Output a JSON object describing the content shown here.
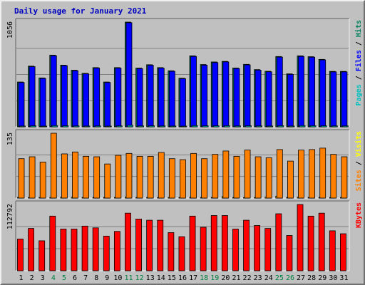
{
  "title": "Daily usage for January 2021",
  "colors": {
    "hits": "#00805c",
    "files": "#0000ff",
    "pages": "#00c0c0",
    "visits": "#ffff00",
    "sites": "#ff8000",
    "kbytes": "#ff0000",
    "weekend_day": "#008040",
    "weekday": "#000000"
  },
  "chart_data": [
    {
      "type": "bar",
      "categories": [
        "1",
        "2",
        "3",
        "4",
        "5",
        "6",
        "7",
        "8",
        "9",
        "10",
        "11",
        "12",
        "13",
        "14",
        "15",
        "16",
        "17",
        "18",
        "19",
        "20",
        "21",
        "22",
        "23",
        "24",
        "25",
        "26",
        "27",
        "28",
        "29",
        "30",
        "31"
      ],
      "y_max_label": "1056",
      "ylim": [
        0,
        1056
      ],
      "side_label": [
        "Pages",
        "Files",
        "Hits"
      ],
      "series": [
        {
          "name": "Hits",
          "values": [
            452,
            612,
            493,
            723,
            622,
            571,
            539,
            597,
            452,
            597,
            1056,
            592,
            626,
            597,
            565,
            490,
            716,
            628,
            654,
            660,
            593,
            630,
            577,
            560,
            709,
            534,
            716,
            707,
            680,
            559,
            559
          ]
        },
        {
          "name": "Files",
          "values": [
            447,
            607,
            488,
            717,
            617,
            566,
            534,
            592,
            447,
            592,
            1050,
            587,
            621,
            592,
            560,
            485,
            710,
            622,
            648,
            655,
            588,
            625,
            572,
            555,
            703,
            529,
            710,
            702,
            675,
            554,
            554
          ]
        },
        {
          "name": "Pages",
          "values": [
            8,
            10,
            7,
            12,
            10,
            9,
            8,
            9,
            7,
            9,
            15,
            9,
            10,
            9,
            8,
            7,
            12,
            10,
            10,
            11,
            9,
            10,
            9,
            8,
            11,
            8,
            12,
            11,
            10,
            9,
            9
          ]
        }
      ]
    },
    {
      "type": "bar",
      "categories": [
        "1",
        "2",
        "3",
        "4",
        "5",
        "6",
        "7",
        "8",
        "9",
        "10",
        "11",
        "12",
        "13",
        "14",
        "15",
        "16",
        "17",
        "18",
        "19",
        "20",
        "21",
        "22",
        "23",
        "24",
        "25",
        "26",
        "27",
        "28",
        "29",
        "30",
        "31"
      ],
      "y_max_label": "135",
      "ylim": [
        0,
        135
      ],
      "side_label": [
        "Sites",
        "Visits"
      ],
      "series": [
        {
          "name": "Visits",
          "values": [
            1,
            1,
            1,
            1,
            2,
            2,
            1,
            1,
            1,
            1,
            2,
            1,
            1,
            1,
            1,
            1,
            2,
            1,
            1,
            3,
            1,
            1,
            1,
            2,
            4,
            1,
            2,
            1,
            1,
            1,
            1
          ]
        },
        {
          "name": "Sites",
          "values": [
            82,
            86,
            75,
            135,
            92,
            96,
            87,
            86,
            71,
            89,
            93,
            87,
            87,
            95,
            82,
            80,
            93,
            82,
            91,
            98,
            87,
            100,
            86,
            84,
            101,
            77,
            100,
            101,
            104,
            91,
            86
          ]
        }
      ]
    },
    {
      "type": "bar",
      "categories": [
        "1",
        "2",
        "3",
        "4",
        "5",
        "6",
        "7",
        "8",
        "9",
        "10",
        "11",
        "12",
        "13",
        "14",
        "15",
        "16",
        "17",
        "18",
        "19",
        "20",
        "21",
        "22",
        "23",
        "24",
        "25",
        "26",
        "27",
        "28",
        "29",
        "30",
        "31"
      ],
      "y_max_label": "112792",
      "ylim": [
        0,
        112792
      ],
      "side_label": [
        "KBytes"
      ],
      "series": [
        {
          "name": "KBytes",
          "values": [
            54000,
            72000,
            51000,
            93000,
            71000,
            71000,
            76000,
            73000,
            59000,
            67000,
            98000,
            88000,
            86000,
            86000,
            65000,
            58000,
            93000,
            74000,
            94000,
            94000,
            71000,
            86000,
            77000,
            72000,
            97000,
            60000,
            112792,
            93000,
            98000,
            68000,
            63000
          ]
        }
      ]
    }
  ]
}
